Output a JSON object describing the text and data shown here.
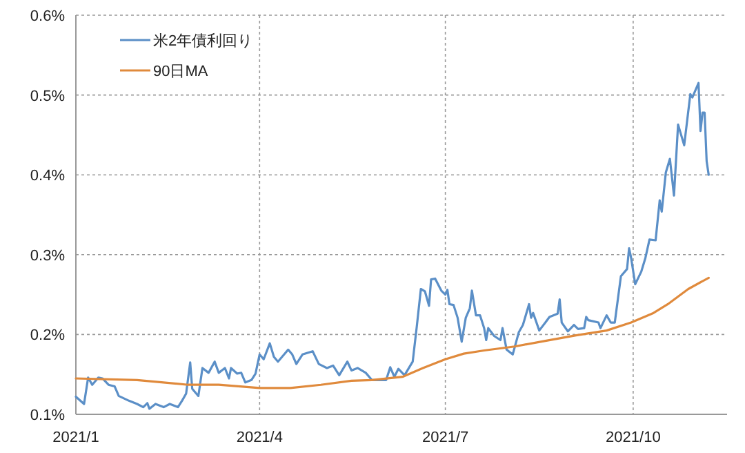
{
  "chart_data": {
    "type": "line",
    "xlim": [
      "2021-01-01",
      "2021-11-16"
    ],
    "xticks": [
      {
        "value": "2021-01-01",
        "label": "2021/1"
      },
      {
        "value": "2021-04-01",
        "label": "2021/4"
      },
      {
        "value": "2021-07-01",
        "label": "2021/7"
      },
      {
        "value": "2021-10-01",
        "label": "2021/10"
      }
    ],
    "ylim": [
      0.1,
      0.6
    ],
    "yticks": [
      {
        "value": 0.1,
        "label": "0.1%"
      },
      {
        "value": 0.2,
        "label": "0.2%"
      },
      {
        "value": 0.3,
        "label": "0.3%"
      },
      {
        "value": 0.4,
        "label": "0.4%"
      },
      {
        "value": 0.5,
        "label": "0.5%"
      },
      {
        "value": 0.6,
        "label": "0.6%"
      }
    ],
    "grid": true,
    "legend": "top left",
    "series": [
      {
        "name": "米2年債利回り",
        "color": "#5b8fc7",
        "x": [
          "2021-01-01",
          "2021-01-05",
          "2021-01-07",
          "2021-01-09",
          "2021-01-12",
          "2021-01-14",
          "2021-01-17",
          "2021-01-20",
          "2021-01-22",
          "2021-01-27",
          "2021-01-31",
          "2021-02-03",
          "2021-02-05",
          "2021-02-06",
          "2021-02-09",
          "2021-02-13",
          "2021-02-16",
          "2021-02-20",
          "2021-02-22",
          "2021-02-24",
          "2021-02-26",
          "2021-02-27",
          "2021-03-02",
          "2021-03-04",
          "2021-03-07",
          "2021-03-10",
          "2021-03-12",
          "2021-03-15",
          "2021-03-17",
          "2021-03-18",
          "2021-03-21",
          "2021-03-23",
          "2021-03-25",
          "2021-03-28",
          "2021-03-30",
          "2021-04-01",
          "2021-04-03",
          "2021-04-06",
          "2021-04-08",
          "2021-04-10",
          "2021-04-12",
          "2021-04-15",
          "2021-04-17",
          "2021-04-19",
          "2021-04-22",
          "2021-04-27",
          "2021-04-30",
          "2021-05-04",
          "2021-05-07",
          "2021-05-10",
          "2021-05-14",
          "2021-05-16",
          "2021-05-19",
          "2021-05-23",
          "2021-05-26",
          "2021-06-02",
          "2021-06-04",
          "2021-06-06",
          "2021-06-08",
          "2021-06-11",
          "2021-06-15",
          "2021-06-17",
          "2021-06-19",
          "2021-06-21",
          "2021-06-23",
          "2021-06-24",
          "2021-06-26",
          "2021-06-29",
          "2021-07-01",
          "2021-07-02",
          "2021-07-03",
          "2021-07-05",
          "2021-07-07",
          "2021-07-09",
          "2021-07-11",
          "2021-07-13",
          "2021-07-14",
          "2021-07-16",
          "2021-07-18",
          "2021-07-20",
          "2021-07-21",
          "2021-07-22",
          "2021-07-25",
          "2021-07-28",
          "2021-07-29",
          "2021-07-31",
          "2021-08-03",
          "2021-08-06",
          "2021-08-08",
          "2021-08-11",
          "2021-08-12",
          "2021-08-13",
          "2021-08-16",
          "2021-08-19",
          "2021-08-21",
          "2021-08-25",
          "2021-08-26",
          "2021-08-27",
          "2021-08-30",
          "2021-09-02",
          "2021-09-04",
          "2021-09-07",
          "2021-09-08",
          "2021-09-09",
          "2021-09-14",
          "2021-09-15",
          "2021-09-18",
          "2021-09-20",
          "2021-09-22",
          "2021-09-25",
          "2021-09-28",
          "2021-09-29",
          "2021-09-30",
          "2021-10-02",
          "2021-10-05",
          "2021-10-07",
          "2021-10-09",
          "2021-10-12",
          "2021-10-14",
          "2021-10-15",
          "2021-10-17",
          "2021-10-19",
          "2021-10-21",
          "2021-10-23",
          "2021-10-26",
          "2021-10-29",
          "2021-10-30",
          "2021-11-02",
          "2021-11-03",
          "2021-11-04",
          "2021-11-05",
          "2021-11-06",
          "2021-11-07"
        ],
        "values": [
          0.122,
          0.113,
          0.146,
          0.137,
          0.146,
          0.145,
          0.137,
          0.135,
          0.123,
          0.117,
          0.113,
          0.109,
          0.114,
          0.107,
          0.113,
          0.109,
          0.113,
          0.109,
          0.117,
          0.126,
          0.165,
          0.132,
          0.123,
          0.158,
          0.152,
          0.166,
          0.152,
          0.158,
          0.145,
          0.158,
          0.151,
          0.152,
          0.14,
          0.143,
          0.151,
          0.175,
          0.169,
          0.189,
          0.172,
          0.166,
          0.172,
          0.181,
          0.175,
          0.163,
          0.175,
          0.179,
          0.163,
          0.158,
          0.161,
          0.149,
          0.166,
          0.155,
          0.158,
          0.152,
          0.143,
          0.143,
          0.159,
          0.147,
          0.157,
          0.149,
          0.166,
          0.21,
          0.257,
          0.254,
          0.236,
          0.269,
          0.27,
          0.255,
          0.25,
          0.256,
          0.238,
          0.237,
          0.221,
          0.191,
          0.221,
          0.233,
          0.255,
          0.224,
          0.224,
          0.208,
          0.193,
          0.208,
          0.198,
          0.193,
          0.208,
          0.181,
          0.175,
          0.203,
          0.212,
          0.238,
          0.221,
          0.227,
          0.205,
          0.215,
          0.222,
          0.226,
          0.244,
          0.215,
          0.204,
          0.212,
          0.207,
          0.208,
          0.222,
          0.218,
          0.215,
          0.208,
          0.224,
          0.215,
          0.215,
          0.273,
          0.282,
          0.308,
          0.296,
          0.263,
          0.279,
          0.296,
          0.319,
          0.318,
          0.368,
          0.354,
          0.403,
          0.42,
          0.374,
          0.463,
          0.437,
          0.501,
          0.497,
          0.515,
          0.455,
          0.478,
          0.478,
          0.417,
          0.4
        ]
      },
      {
        "name": "90日MA",
        "color": "#e08a3c",
        "x": [
          "2021-01-01",
          "2021-01-31",
          "2021-02-25",
          "2021-03-12",
          "2021-04-01",
          "2021-04-16",
          "2021-05-01",
          "2021-05-16",
          "2021-05-26",
          "2021-06-10",
          "2021-06-20",
          "2021-07-01",
          "2021-07-10",
          "2021-07-20",
          "2021-08-04",
          "2021-08-19",
          "2021-09-03",
          "2021-09-18",
          "2021-09-30",
          "2021-10-11",
          "2021-10-18",
          "2021-10-28",
          "2021-11-07"
        ],
        "values": [
          0.145,
          0.143,
          0.137,
          0.137,
          0.133,
          0.133,
          0.137,
          0.142,
          0.143,
          0.147,
          0.158,
          0.169,
          0.176,
          0.18,
          0.185,
          0.192,
          0.199,
          0.205,
          0.215,
          0.227,
          0.238,
          0.257,
          0.271
        ]
      }
    ]
  }
}
